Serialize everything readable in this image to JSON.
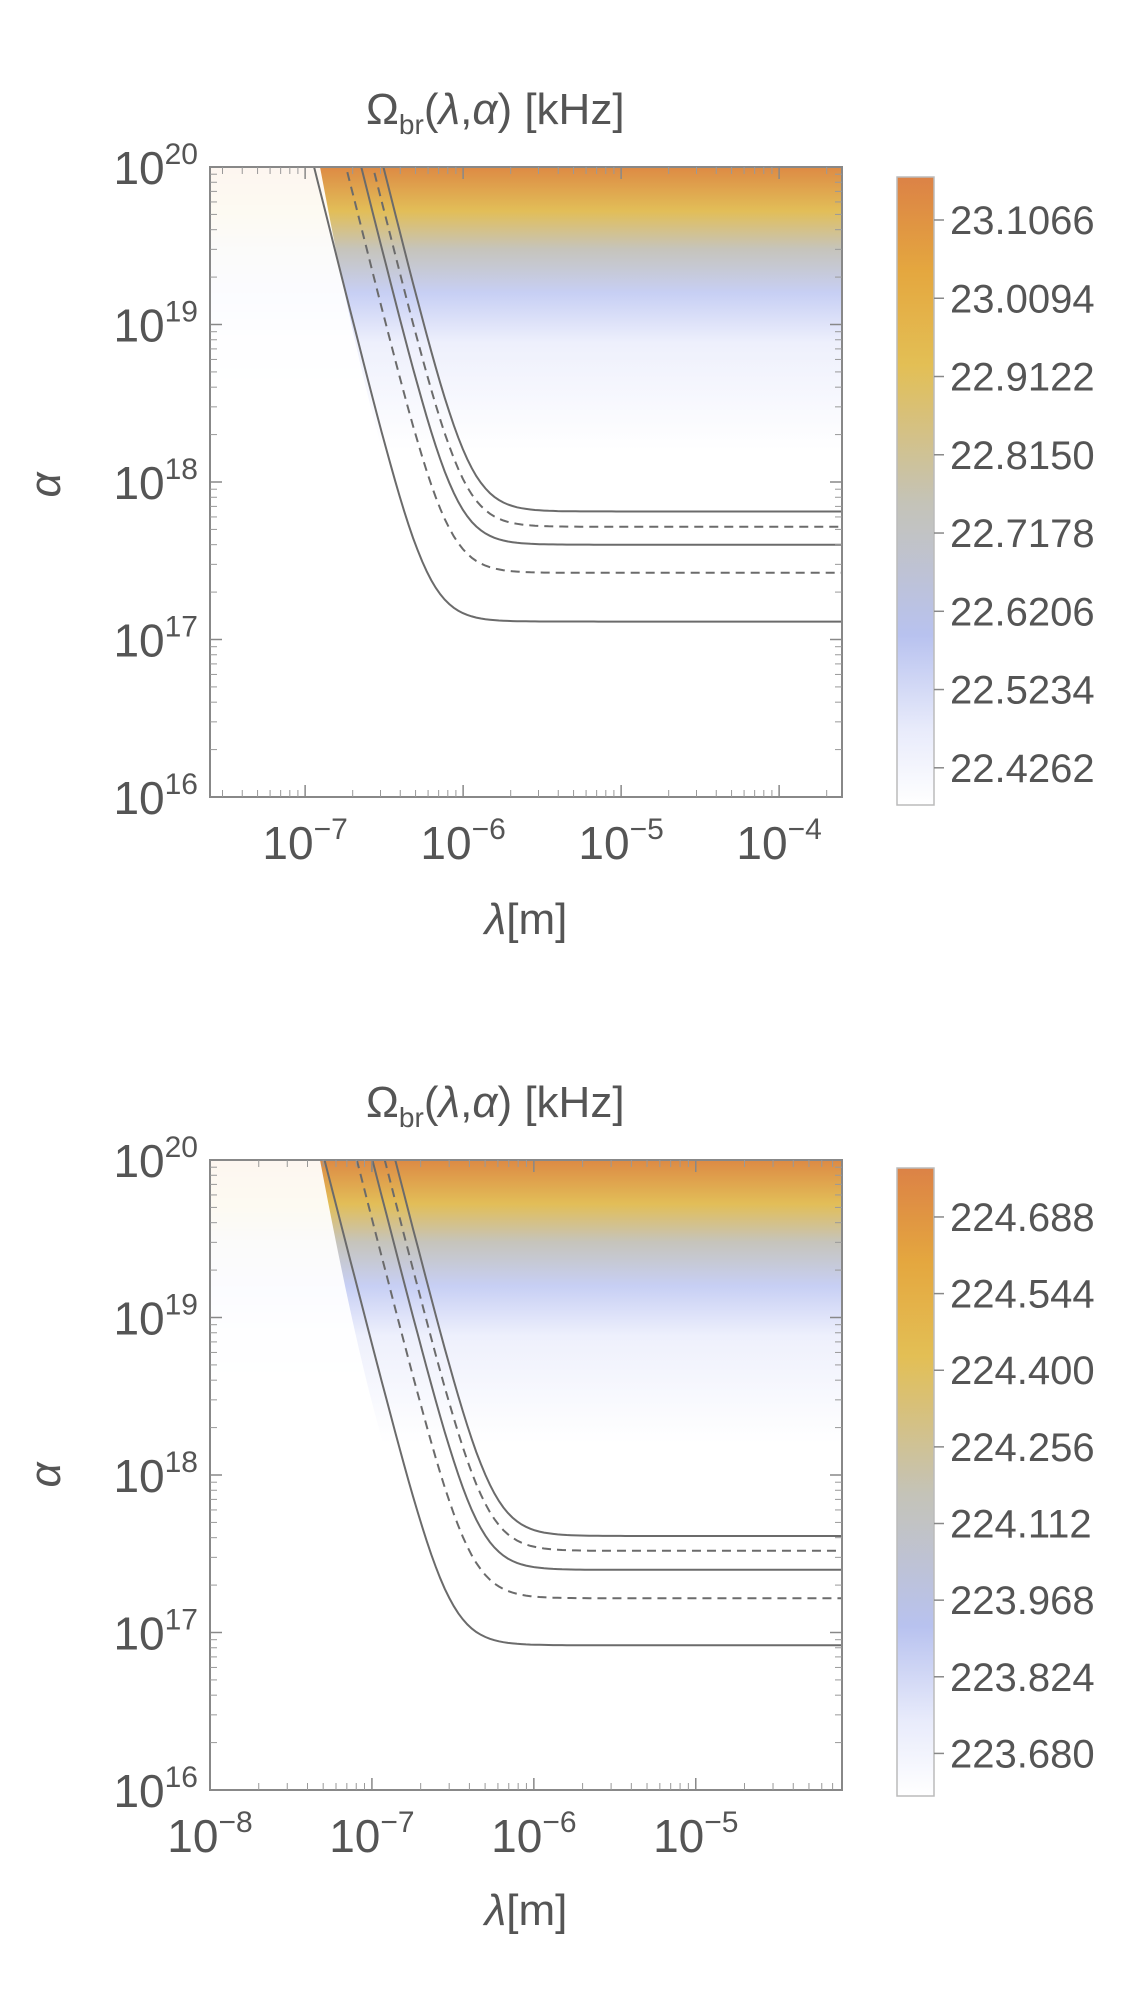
{
  "chart_data": [
    {
      "type": "heatmap",
      "title": {
        "main": "Ω",
        "sub": "br",
        "args_open": "(",
        "lambda": "λ",
        "comma": ",",
        "alpha": "α",
        "args_close": ")",
        "unit": " [kHz]"
      },
      "xlabel": {
        "sym": "λ",
        "unit": "[m]"
      },
      "ylabel": "α",
      "x_scale": "log",
      "y_scale": "log",
      "xlim": [
        2.5e-08,
        0.00025
      ],
      "ylim": [
        1e+16,
        1e+20
      ],
      "x_ticks": [
        {
          "base": "10",
          "exp": "−7",
          "value": 1e-07
        },
        {
          "base": "10",
          "exp": "−6",
          "value": 1e-06
        },
        {
          "base": "10",
          "exp": "−5",
          "value": 1e-05
        },
        {
          "base": "10",
          "exp": "−4",
          "value": 0.0001
        }
      ],
      "y_ticks": [
        {
          "base": "10",
          "exp": "16",
          "value": 1e+16
        },
        {
          "base": "10",
          "exp": "17",
          "value": 1e+17
        },
        {
          "base": "10",
          "exp": "18",
          "value": 1e+18
        },
        {
          "base": "10",
          "exp": "19",
          "value": 1e+19
        },
        {
          "base": "10",
          "exp": "20",
          "value": 1e+20
        }
      ],
      "colorbar": {
        "ticks": [
          "23.1066",
          "23.0094",
          "22.9122",
          "22.8150",
          "22.7178",
          "22.6206",
          "22.5234",
          "22.4262"
        ],
        "range": [
          22.38,
          23.16
        ]
      },
      "contours": [
        {
          "style": "solid",
          "x_knee": 6e-07,
          "alpha_high": 1.3e+17
        },
        {
          "style": "dashed",
          "x_knee": 8e-07,
          "alpha_high": 2.65e+17
        },
        {
          "style": "solid",
          "x_knee": 9e-07,
          "alpha_high": 4e+17
        },
        {
          "style": "dashed",
          "x_knee": 1e-06,
          "alpha_high": 5.2e+17
        },
        {
          "style": "solid",
          "x_knee": 1.1e-06,
          "alpha_high": 6.5e+17
        }
      ]
    },
    {
      "type": "heatmap",
      "title": {
        "main": "Ω",
        "sub": "br",
        "args_open": "(",
        "lambda": "λ",
        "comma": ",",
        "alpha": "α",
        "args_close": ")",
        "unit": " [kHz]"
      },
      "xlabel": {
        "sym": "λ",
        "unit": "[m]"
      },
      "ylabel": "α",
      "x_scale": "log",
      "y_scale": "log",
      "xlim": [
        1e-08,
        8e-05
      ],
      "ylim": [
        1e+16,
        1e+20
      ],
      "x_ticks": [
        {
          "base": "10",
          "exp": "−8",
          "value": 1e-08
        },
        {
          "base": "10",
          "exp": "−7",
          "value": 1e-07
        },
        {
          "base": "10",
          "exp": "−6",
          "value": 1e-06
        },
        {
          "base": "10",
          "exp": "−5",
          "value": 1e-05
        }
      ],
      "y_ticks": [
        {
          "base": "10",
          "exp": "16",
          "value": 1e+16
        },
        {
          "base": "10",
          "exp": "17",
          "value": 1e+17
        },
        {
          "base": "10",
          "exp": "18",
          "value": 1e+18
        },
        {
          "base": "10",
          "exp": "19",
          "value": 1e+19
        },
        {
          "base": "10",
          "exp": "20",
          "value": 1e+20
        }
      ],
      "colorbar": {
        "ticks": [
          "224.688",
          "224.544",
          "224.400",
          "224.256",
          "224.112",
          "223.968",
          "223.824",
          "223.680"
        ],
        "range": [
          223.6,
          224.78
        ]
      },
      "contours": [
        {
          "style": "solid",
          "x_knee": 3e-07,
          "alpha_high": 8.3e+16
        },
        {
          "style": "dashed",
          "x_knee": 4e-07,
          "alpha_high": 1.65e+17
        },
        {
          "style": "solid",
          "x_knee": 4.5e-07,
          "alpha_high": 2.5e+17
        },
        {
          "style": "dashed",
          "x_knee": 5e-07,
          "alpha_high": 3.3e+17
        },
        {
          "style": "solid",
          "x_knee": 5.5e-07,
          "alpha_high": 4.1e+17
        }
      ]
    }
  ],
  "colors": {
    "axis": "#888888",
    "text": "#555555",
    "contour": "#6b6b6b",
    "gradient": [
      "#ffffff",
      "#eef0fb",
      "#b9c3f0",
      "#c9c5b4",
      "#e3bc55",
      "#e3a03e",
      "#dc8445"
    ]
  }
}
